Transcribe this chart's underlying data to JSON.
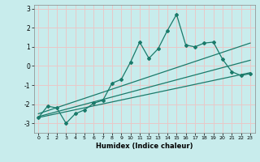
{
  "xlabel": "Humidex (Indice chaleur)",
  "ylabel": "",
  "background_color": "#c8ecec",
  "grid_color": "#e8c8c8",
  "line_color": "#1a7a6a",
  "xlim": [
    -0.5,
    23.5
  ],
  "ylim": [
    -3.5,
    3.2
  ],
  "xticks": [
    0,
    1,
    2,
    3,
    4,
    5,
    6,
    7,
    8,
    9,
    10,
    11,
    12,
    13,
    14,
    15,
    16,
    17,
    18,
    19,
    20,
    21,
    22,
    23
  ],
  "yticks": [
    -3,
    -2,
    -1,
    0,
    1,
    2,
    3
  ],
  "main_x": [
    0,
    1,
    2,
    3,
    4,
    5,
    6,
    7,
    8,
    9,
    10,
    11,
    12,
    13,
    14,
    15,
    16,
    17,
    18,
    19,
    20,
    21,
    22,
    23
  ],
  "main_y": [
    -2.7,
    -2.1,
    -2.2,
    -3.0,
    -2.5,
    -2.3,
    -1.95,
    -1.8,
    -0.9,
    -0.7,
    0.2,
    1.25,
    0.4,
    0.9,
    1.85,
    2.7,
    1.1,
    1.0,
    1.2,
    1.25,
    0.35,
    -0.3,
    -0.5,
    -0.4
  ],
  "line2_x": [
    0,
    23
  ],
  "line2_y": [
    -2.5,
    1.2
  ],
  "line3_x": [
    0,
    23
  ],
  "line3_y": [
    -2.7,
    -0.35
  ],
  "line4_x": [
    0,
    23
  ],
  "line4_y": [
    -2.65,
    0.3
  ]
}
